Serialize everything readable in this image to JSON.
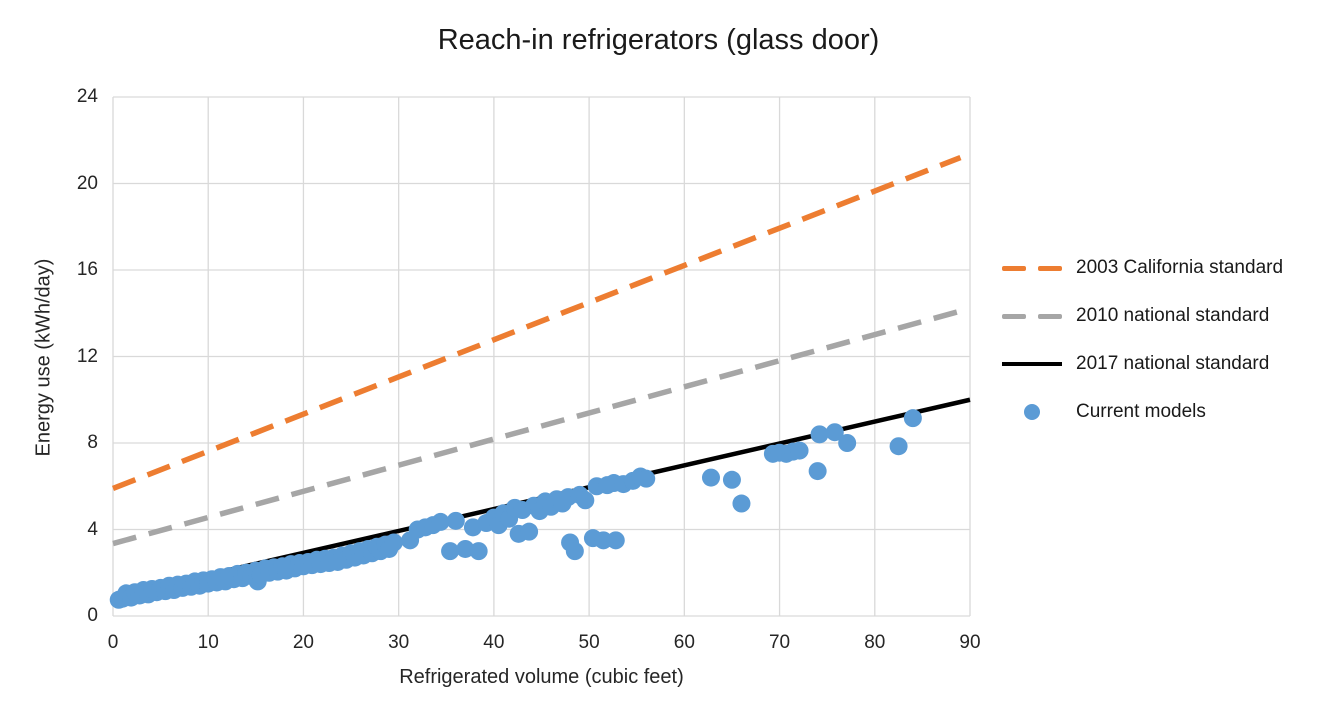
{
  "chart_data": {
    "type": "scatter",
    "title": "Reach-in refrigerators (glass door)",
    "xlabel": "Refrigerated volume (cubic feet)",
    "ylabel": "Energy use (kWh/day)",
    "xlim": [
      0,
      90
    ],
    "ylim": [
      0,
      24
    ],
    "xticks": [
      0,
      10,
      20,
      30,
      40,
      50,
      60,
      70,
      80,
      90
    ],
    "yticks": [
      0,
      4,
      8,
      12,
      16,
      20,
      24
    ],
    "grid": true,
    "grid_color": "#d9d9d9",
    "legend_position": "right",
    "series": [
      {
        "name": "2003 California standard",
        "type": "line",
        "style": "dashed",
        "color": "#ED7D31",
        "points": [
          [
            0,
            5.9
          ],
          [
            89,
            21.2
          ]
        ]
      },
      {
        "name": "2010 national standard",
        "type": "line",
        "style": "dashed",
        "color": "#A6A6A6",
        "points": [
          [
            0,
            3.35
          ],
          [
            89,
            14.1
          ]
        ]
      },
      {
        "name": "2017 national standard",
        "type": "line",
        "style": "solid",
        "color": "#000000",
        "points": [
          [
            0,
            0.9
          ],
          [
            90,
            10.0
          ]
        ]
      },
      {
        "name": "Current models",
        "type": "scatter",
        "color": "#5B9BD5",
        "points": [
          [
            0.6,
            0.75
          ],
          [
            1.0,
            0.8
          ],
          [
            1.4,
            1.05
          ],
          [
            1.9,
            0.85
          ],
          [
            2.3,
            1.1
          ],
          [
            2.8,
            0.95
          ],
          [
            3.2,
            1.2
          ],
          [
            3.7,
            1.0
          ],
          [
            4.1,
            1.25
          ],
          [
            4.6,
            1.1
          ],
          [
            5.0,
            1.3
          ],
          [
            5.5,
            1.15
          ],
          [
            5.9,
            1.4
          ],
          [
            6.4,
            1.2
          ],
          [
            6.8,
            1.45
          ],
          [
            7.3,
            1.3
          ],
          [
            7.7,
            1.5
          ],
          [
            8.2,
            1.35
          ],
          [
            8.6,
            1.6
          ],
          [
            9.1,
            1.4
          ],
          [
            9.5,
            1.65
          ],
          [
            10.0,
            1.5
          ],
          [
            10.4,
            1.7
          ],
          [
            10.9,
            1.55
          ],
          [
            11.3,
            1.8
          ],
          [
            11.8,
            1.6
          ],
          [
            12.2,
            1.85
          ],
          [
            12.7,
            1.7
          ],
          [
            13.1,
            1.95
          ],
          [
            13.6,
            1.75
          ],
          [
            14.0,
            2.0
          ],
          [
            14.5,
            1.85
          ],
          [
            15.0,
            2.1
          ],
          [
            15.2,
            1.6
          ],
          [
            15.5,
            1.9
          ],
          [
            16.0,
            2.2
          ],
          [
            16.4,
            2.0
          ],
          [
            16.9,
            2.25
          ],
          [
            17.3,
            2.05
          ],
          [
            17.8,
            2.3
          ],
          [
            18.2,
            2.1
          ],
          [
            18.7,
            2.4
          ],
          [
            19.1,
            2.2
          ],
          [
            19.6,
            2.45
          ],
          [
            20.0,
            2.3
          ],
          [
            20.5,
            2.5
          ],
          [
            20.9,
            2.35
          ],
          [
            21.4,
            2.6
          ],
          [
            21.8,
            2.4
          ],
          [
            22.3,
            2.65
          ],
          [
            22.7,
            2.45
          ],
          [
            23.2,
            2.7
          ],
          [
            23.6,
            2.5
          ],
          [
            24.1,
            2.8
          ],
          [
            24.5,
            2.6
          ],
          [
            25.0,
            2.9
          ],
          [
            25.4,
            2.7
          ],
          [
            25.9,
            3.0
          ],
          [
            26.3,
            2.8
          ],
          [
            26.8,
            3.1
          ],
          [
            27.2,
            2.9
          ],
          [
            27.7,
            3.2
          ],
          [
            28.1,
            3.0
          ],
          [
            28.6,
            3.3
          ],
          [
            29.0,
            3.1
          ],
          [
            29.5,
            3.4
          ],
          [
            31.2,
            3.5
          ],
          [
            32.0,
            4.0
          ],
          [
            32.8,
            4.1
          ],
          [
            33.6,
            4.2
          ],
          [
            34.4,
            4.35
          ],
          [
            35.4,
            3.0
          ],
          [
            36.0,
            4.4
          ],
          [
            37.0,
            3.1
          ],
          [
            37.8,
            4.1
          ],
          [
            38.4,
            3.0
          ],
          [
            39.2,
            4.3
          ],
          [
            40.0,
            4.55
          ],
          [
            40.5,
            4.2
          ],
          [
            41.0,
            4.75
          ],
          [
            41.6,
            4.5
          ],
          [
            42.2,
            5.0
          ],
          [
            42.6,
            3.8
          ],
          [
            43.0,
            4.9
          ],
          [
            43.7,
            3.9
          ],
          [
            44.2,
            5.1
          ],
          [
            44.8,
            4.85
          ],
          [
            45.4,
            5.3
          ],
          [
            46.0,
            5.05
          ],
          [
            46.6,
            5.4
          ],
          [
            47.2,
            5.2
          ],
          [
            47.8,
            5.5
          ],
          [
            48.0,
            3.4
          ],
          [
            48.5,
            3.0
          ],
          [
            49.0,
            5.6
          ],
          [
            49.6,
            5.35
          ],
          [
            50.4,
            3.6
          ],
          [
            50.8,
            6.0
          ],
          [
            51.5,
            3.5
          ],
          [
            51.9,
            6.05
          ],
          [
            52.8,
            3.5
          ],
          [
            52.6,
            6.15
          ],
          [
            53.6,
            6.1
          ],
          [
            54.6,
            6.25
          ],
          [
            55.4,
            6.45
          ],
          [
            56.0,
            6.35
          ],
          [
            62.8,
            6.4
          ],
          [
            65.0,
            6.3
          ],
          [
            66.0,
            5.2
          ],
          [
            69.3,
            7.5
          ],
          [
            70.0,
            7.55
          ],
          [
            70.7,
            7.5
          ],
          [
            71.4,
            7.6
          ],
          [
            72.1,
            7.65
          ],
          [
            74.0,
            6.7
          ],
          [
            74.2,
            8.4
          ],
          [
            75.8,
            8.5
          ],
          [
            77.1,
            8.0
          ],
          [
            82.5,
            7.85
          ],
          [
            84.0,
            9.15
          ]
        ]
      }
    ]
  }
}
